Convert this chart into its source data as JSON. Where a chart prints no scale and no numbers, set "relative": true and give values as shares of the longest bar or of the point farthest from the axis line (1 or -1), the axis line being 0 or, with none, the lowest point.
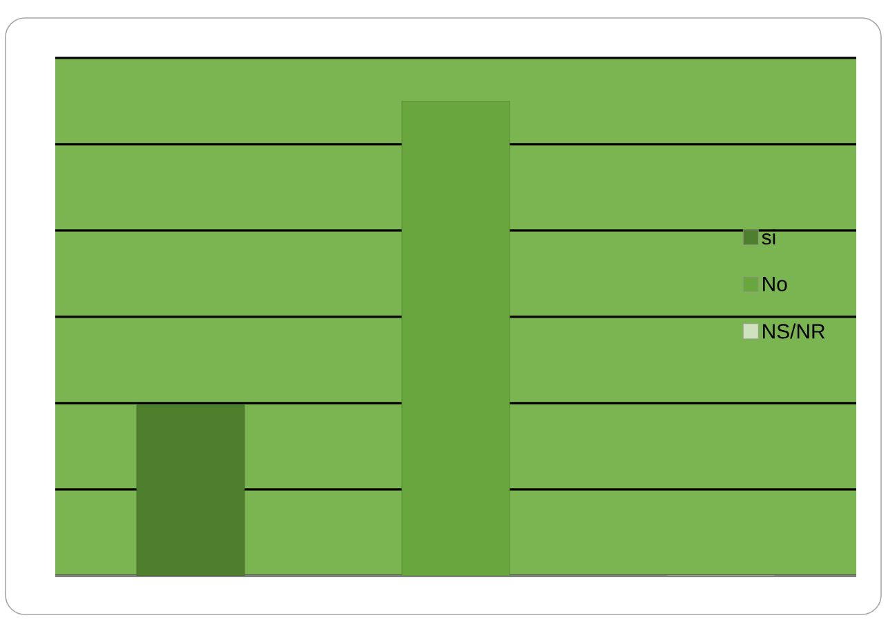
{
  "chart_data": {
    "type": "bar",
    "relative": true,
    "categories": [
      null
    ],
    "series": [
      {
        "name": "si",
        "color": "#4e7f2c",
        "values": [
          0.36
        ]
      },
      {
        "name": "No",
        "color": "#6aa63e",
        "values": [
          1
        ]
      },
      {
        "name": "NS/NR",
        "color": "#cfe2c0",
        "values": [
          0
        ]
      }
    ],
    "grid": "y",
    "legend": "right"
  }
}
